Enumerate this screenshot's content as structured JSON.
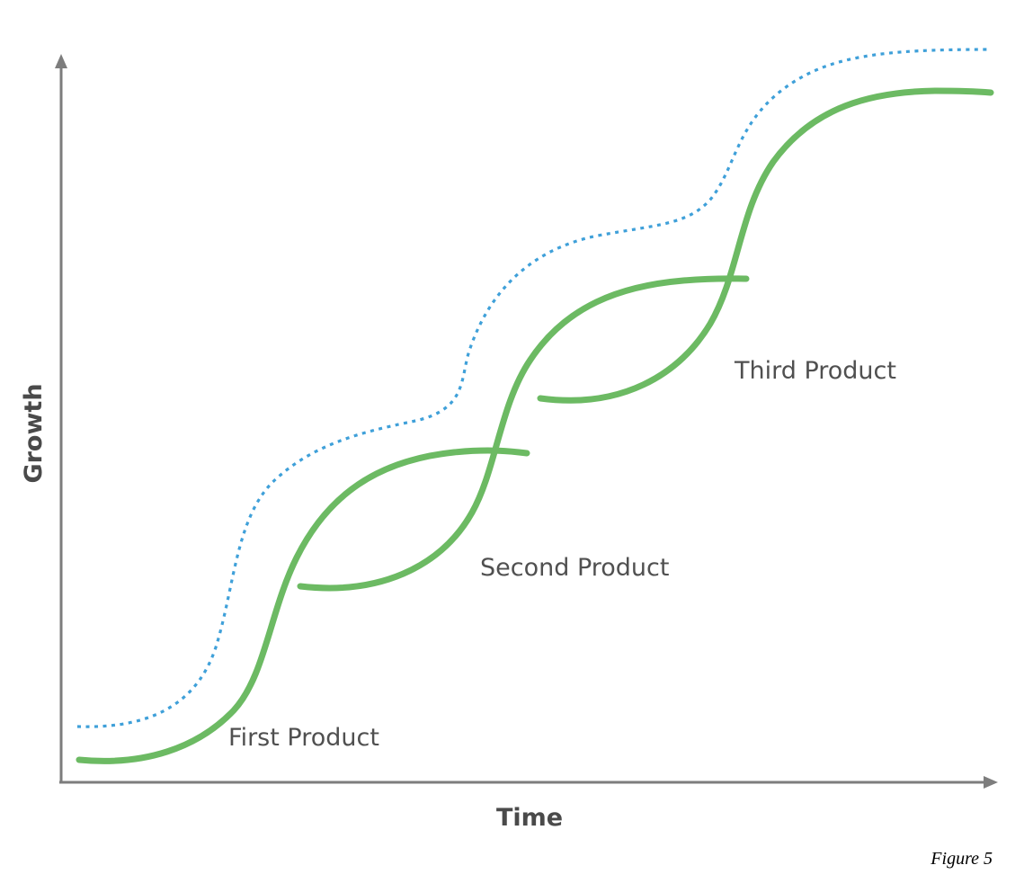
{
  "colors": {
    "product_curve": "#6cba63",
    "envelope_curve": "#3fa0d9",
    "axes": "#7d7d7d"
  },
  "axes": {
    "x_title": "Time",
    "y_title": "Growth"
  },
  "curves": [
    {
      "label": "First Product",
      "kind": "s-curve"
    },
    {
      "label": "Second Product",
      "kind": "s-curve"
    },
    {
      "label": "Third Product",
      "kind": "s-curve"
    }
  ],
  "envelope": {
    "style": "dotted",
    "kind": "overall growth envelope"
  },
  "caption": "Figure 5"
}
